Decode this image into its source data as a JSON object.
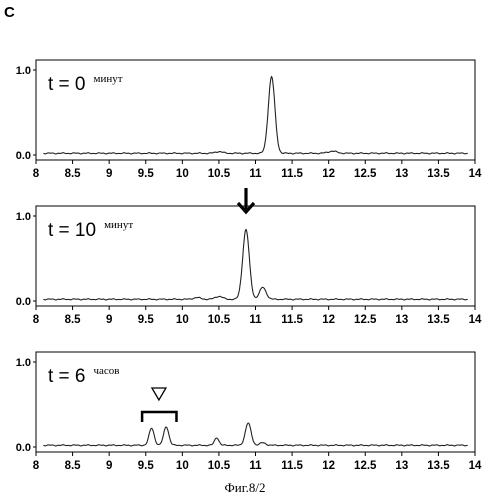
{
  "panel_letter": "C",
  "caption": "Фиг.8/2",
  "chart_data": [
    {
      "type": "line",
      "label_t": "t = 0",
      "label_unit": "минут",
      "xlim": [
        8,
        14
      ],
      "ylim": [
        0.0,
        1.0
      ],
      "x_ticks": [
        "8",
        "8.5",
        "9",
        "9.5",
        "10",
        "10.5",
        "11",
        "11.5",
        "12",
        "12.5",
        "13",
        "13.5",
        "14"
      ],
      "y_ticks": [
        "0.0",
        "1.0"
      ],
      "baseline": 0.02,
      "peaks": [
        {
          "x": 11.22,
          "height": 0.9,
          "width": 0.045
        },
        {
          "x": 10.5,
          "height": 0.02,
          "width": 0.05
        },
        {
          "x": 12.05,
          "height": 0.025,
          "width": 0.06
        }
      ],
      "annotations": []
    },
    {
      "type": "line",
      "label_t": "t = 10",
      "label_unit": "минут",
      "xlim": [
        8,
        14
      ],
      "ylim": [
        0.0,
        1.0
      ],
      "x_ticks": [
        "8",
        "8.5",
        "9",
        "9.5",
        "10",
        "10.5",
        "11",
        "11.5",
        "12",
        "12.5",
        "13",
        "13.5",
        "14"
      ],
      "y_ticks": [
        "0.0",
        "1.0"
      ],
      "baseline": 0.02,
      "peaks": [
        {
          "x": 10.87,
          "height": 0.82,
          "width": 0.045
        },
        {
          "x": 11.1,
          "height": 0.14,
          "width": 0.045
        },
        {
          "x": 10.5,
          "height": 0.035,
          "width": 0.05
        },
        {
          "x": 10.2,
          "height": 0.02,
          "width": 0.05
        }
      ],
      "annotations": [
        {
          "kind": "arrow-down",
          "x": 10.87
        }
      ]
    },
    {
      "type": "line",
      "label_t": "t = 6",
      "label_unit": "часов",
      "xlim": [
        8,
        14
      ],
      "ylim": [
        0.0,
        1.0
      ],
      "x_ticks": [
        "8",
        "8.5",
        "9",
        "9.5",
        "10",
        "10.5",
        "11",
        "11.5",
        "12",
        "12.5",
        "13",
        "13.5",
        "14"
      ],
      "y_ticks": [
        "0.0",
        "1.0"
      ],
      "baseline": 0.02,
      "peaks": [
        {
          "x": 9.58,
          "height": 0.2,
          "width": 0.035
        },
        {
          "x": 9.78,
          "height": 0.22,
          "width": 0.035
        },
        {
          "x": 10.47,
          "height": 0.09,
          "width": 0.03
        },
        {
          "x": 10.9,
          "height": 0.26,
          "width": 0.04
        },
        {
          "x": 11.1,
          "height": 0.03,
          "width": 0.04
        }
      ],
      "annotations": [
        {
          "kind": "bracket",
          "x_from": 9.45,
          "x_to": 9.92
        },
        {
          "kind": "triangle-down-open",
          "x": 9.68
        }
      ]
    }
  ]
}
